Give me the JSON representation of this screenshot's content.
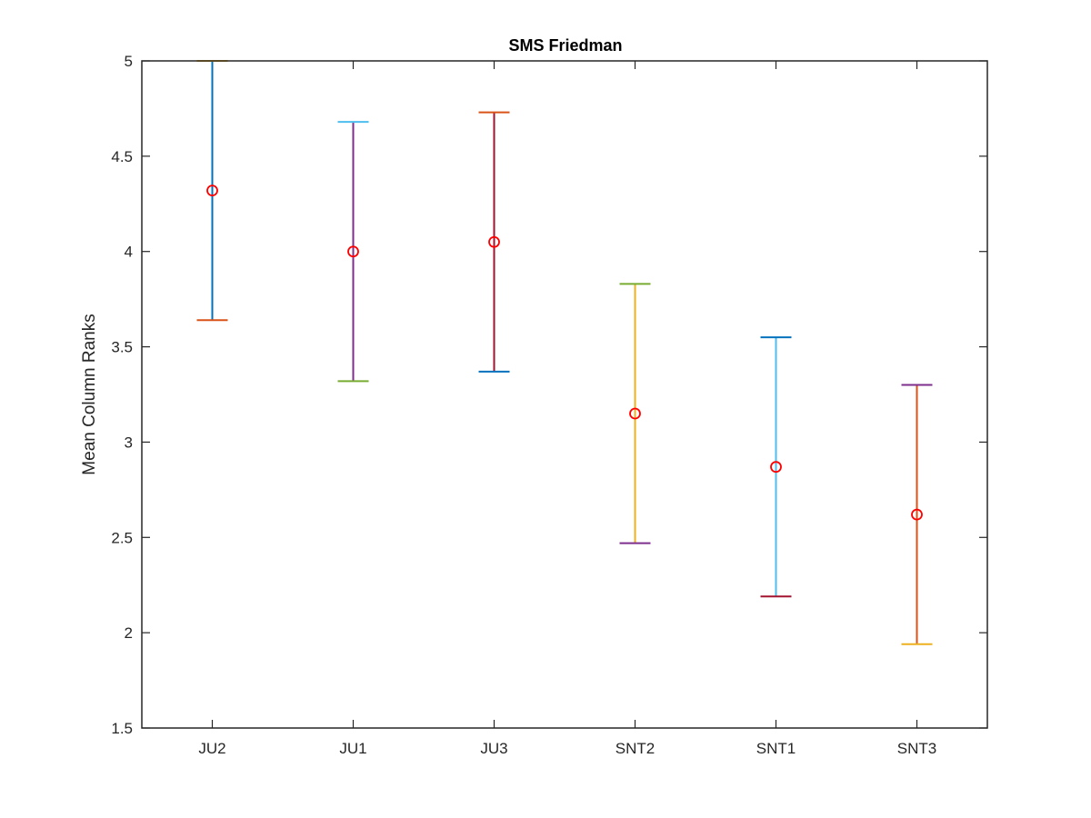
{
  "chart_data": {
    "type": "errorbar",
    "title": "SMS Friedman",
    "xlabel": "",
    "ylabel": "Mean Column Ranks",
    "ylim": [
      1.5,
      5
    ],
    "yticks": [
      1.5,
      2,
      2.5,
      3,
      3.5,
      4,
      4.5,
      5
    ],
    "grid": false,
    "marker_color": "#ff0000",
    "categories": [
      "JU2",
      "JU1",
      "JU3",
      "SNT2",
      "SNT1",
      "SNT3"
    ],
    "means": [
      4.32,
      4.0,
      4.05,
      3.15,
      2.87,
      2.62
    ],
    "lower": [
      3.64,
      3.32,
      3.37,
      2.47,
      2.19,
      1.94
    ],
    "upper": [
      5.0,
      4.68,
      4.73,
      3.83,
      3.55,
      3.3
    ],
    "colors": [
      {
        "lower_cap": "#d95319",
        "line": "#0072bd",
        "upper_cap": "#edb120"
      },
      {
        "lower_cap": "#77ac30",
        "line": "#7e2f8e",
        "upper_cap": "#4dbeee"
      },
      {
        "lower_cap": "#0072bd",
        "line": "#a2142f",
        "upper_cap": "#d95319"
      },
      {
        "lower_cap": "#7e2f8e",
        "line": "#edb120",
        "upper_cap": "#77ac30"
      },
      {
        "lower_cap": "#a2142f",
        "line": "#4dbeee",
        "upper_cap": "#0072bd"
      },
      {
        "lower_cap": "#edb120",
        "line": "#d95319",
        "upper_cap": "#7e2f8e"
      }
    ]
  }
}
